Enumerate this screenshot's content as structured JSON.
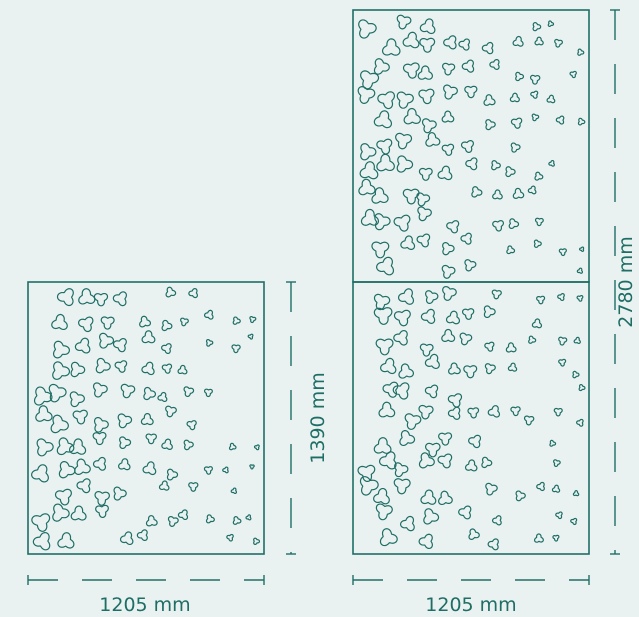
{
  "colors": {
    "background": "#eaf2f1",
    "stroke": "#1e6e66"
  },
  "panels": [
    {
      "id": "single",
      "width_label": "1205 mm",
      "height_label": "1390 mm",
      "sections": 1
    },
    {
      "id": "double",
      "width_label": "1205 mm",
      "height_label": "2780 mm",
      "sections": 2
    }
  ],
  "pattern": {
    "motif": "trefoil-cutout",
    "density": "dense on left, fading to small on right"
  }
}
